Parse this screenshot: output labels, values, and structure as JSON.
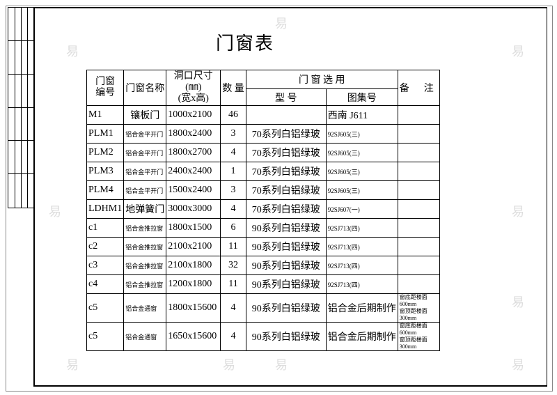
{
  "title": "门窗表",
  "header": {
    "code": "门窗\n编号",
    "name": "门窗名称",
    "size": "洞口尺寸(㎜)\n(宽x高)",
    "qty": "数 量",
    "selection": "门 窗 选 用",
    "model": "型  号",
    "atlas": "图集号",
    "remark": "备      注"
  },
  "rows": [
    {
      "code": "M1",
      "name": "镶板门",
      "size": "1000x2100",
      "qty": "46",
      "model": "",
      "atlas": "西南 J611",
      "remark": ""
    },
    {
      "code": "PLM1",
      "name": "铝合金平开门",
      "size": "1800x2400",
      "qty": "3",
      "model": "70系列白铝绿玻",
      "atlas": "92SJ605(三)",
      "remark": ""
    },
    {
      "code": "PLM2",
      "name": "铝合金平开门",
      "size": "1800x2700",
      "qty": "4",
      "model": "70系列白铝绿玻",
      "atlas": "92SJ605(三)",
      "remark": ""
    },
    {
      "code": "PLM3",
      "name": "铝合金平开门",
      "size": "2400x2400",
      "qty": "1",
      "model": "70系列白铝绿玻",
      "atlas": "92SJ605(三)",
      "remark": ""
    },
    {
      "code": "PLM4",
      "name": "铝合金平开门",
      "size": "1500x2400",
      "qty": "3",
      "model": "70系列白铝绿玻",
      "atlas": "92SJ605(三)",
      "remark": ""
    },
    {
      "code": "LDHM1",
      "name": "地弹簧门",
      "size": "3000x3000",
      "qty": "4",
      "model": "70系列白铝绿玻",
      "atlas": "92SJ607(一)",
      "remark": ""
    },
    {
      "code": "c1",
      "name": "铝合金推拉窗",
      "size": "1800x1500",
      "qty": "6",
      "model": "90系列白铝绿玻",
      "atlas": "92SJ713(四)",
      "remark": ""
    },
    {
      "code": "c2",
      "name": "铝合金推拉窗",
      "size": "2100x2100",
      "qty": "11",
      "model": "90系列白铝绿玻",
      "atlas": "92SJ713(四)",
      "remark": ""
    },
    {
      "code": "c3",
      "name": "铝合金推拉窗",
      "size": "2100x1800",
      "qty": "32",
      "model": "90系列白铝绿玻",
      "atlas": "92SJ713(四)",
      "remark": ""
    },
    {
      "code": "c4",
      "name": "铝合金推拉窗",
      "size": "1200x1800",
      "qty": "11",
      "model": "90系列白铝绿玻",
      "atlas": "92SJ713(四)",
      "remark": ""
    },
    {
      "code": "c5",
      "name": "铝合金通窗",
      "size": "1800x15600",
      "qty": "4",
      "model": "90系列白铝绿玻",
      "atlas": "铝合金后期制作",
      "remark": "窗底距楼面600mm\n窗顶距楼面300mm"
    },
    {
      "code": "c5",
      "name": "铝合金通窗",
      "size": "1650x15600",
      "qty": "4",
      "model": "90系列白铝绿玻",
      "atlas": "铝合金后期制作",
      "remark": "窗底距楼面600mm\n窗顶距楼面300mm"
    }
  ],
  "watermark": "易"
}
